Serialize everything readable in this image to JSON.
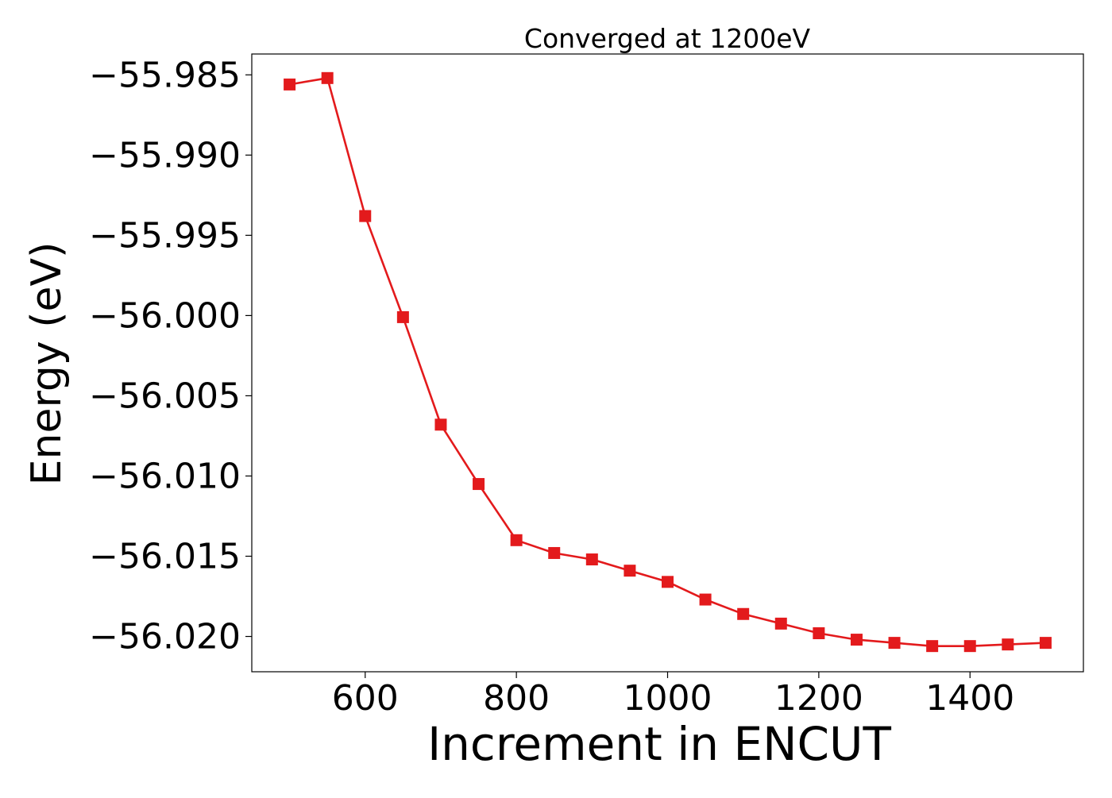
{
  "chart_data": {
    "type": "line",
    "title": "Converged at 1200eV",
    "xlabel": "Increment in ENCUT",
    "ylabel": "Energy (eV)",
    "xlim": [
      450,
      1550
    ],
    "ylim": [
      -56.0222,
      -55.9837
    ],
    "x_ticks": [
      600,
      800,
      1000,
      1200,
      1400
    ],
    "x_tick_labels": [
      "600",
      "800",
      "1000",
      "1200",
      "1400"
    ],
    "y_ticks": [
      -55.985,
      -55.99,
      -55.995,
      -56.0,
      -56.005,
      -56.01,
      -56.015,
      -56.02
    ],
    "y_tick_labels": [
      "−55.985",
      "−55.990",
      "−55.995",
      "−56.000",
      "−56.005",
      "−56.010",
      "−56.015",
      "−56.020"
    ],
    "grid": false,
    "legend": "none",
    "series": [
      {
        "color": "#e31a1c",
        "marker": "square",
        "x": [
          500,
          550,
          600,
          650,
          700,
          750,
          800,
          850,
          900,
          950,
          1000,
          1050,
          1100,
          1150,
          1200,
          1250,
          1300,
          1350,
          1400,
          1450,
          1500
        ],
        "y": [
          -55.9856,
          -55.9852,
          -55.9938,
          -56.0001,
          -56.0068,
          -56.0105,
          -56.014,
          -56.0148,
          -56.0152,
          -56.0159,
          -56.0166,
          -56.0177,
          -56.0186,
          -56.0192,
          -56.0198,
          -56.0202,
          -56.0204,
          -56.0206,
          -56.0206,
          -56.0205,
          -56.0204
        ]
      }
    ]
  }
}
